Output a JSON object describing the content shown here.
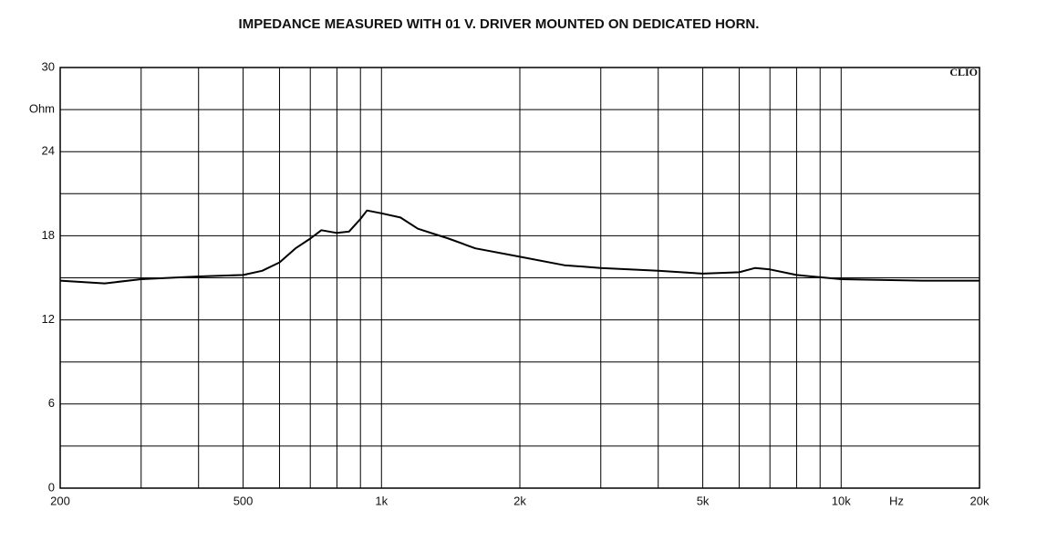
{
  "chart_data": {
    "type": "line",
    "title": "IMPEDANCE MEASURED WITH 01 V. DRIVER MOUNTED ON DEDICATED HORN.",
    "brand": "CLIO",
    "x_label": "Hz",
    "xscale": "log",
    "x": [
      200,
      250,
      300,
      400,
      500,
      550,
      600,
      650,
      700,
      740,
      800,
      850,
      900,
      930,
      1000,
      1100,
      1200,
      1400,
      1600,
      2000,
      2500,
      3000,
      4000,
      5000,
      6000,
      6500,
      7000,
      8000,
      10000,
      15000,
      20000
    ],
    "series": [
      {
        "color": "#000000",
        "values": [
          14.8,
          14.6,
          14.9,
          15.1,
          15.2,
          15.5,
          16.1,
          17.1,
          17.8,
          18.4,
          18.2,
          18.3,
          19.2,
          19.8,
          19.6,
          19.3,
          18.5,
          17.8,
          17.1,
          16.5,
          15.9,
          15.7,
          15.5,
          15.3,
          15.4,
          15.7,
          15.6,
          15.2,
          14.9,
          14.8,
          14.8
        ]
      }
    ],
    "xlim": [
      200,
      20000
    ],
    "xticks": [
      200,
      500,
      {
        "value": 1000,
        "label": "1k"
      },
      {
        "value": 2000,
        "label": "2k"
      },
      {
        "value": 5000,
        "label": "5k"
      },
      {
        "value": 10000,
        "label": "10k"
      },
      {
        "value": 20000,
        "label": "20k"
      }
    ],
    "xminor": [
      300,
      400,
      600,
      700,
      800,
      900,
      3000,
      4000,
      6000,
      7000,
      8000,
      9000
    ],
    "ylim": [
      0,
      30
    ],
    "yticks": [
      0,
      6,
      12,
      18,
      24,
      {
        "value": 27,
        "label": "Ohm"
      },
      30
    ],
    "yminor": [
      3,
      9,
      15,
      21
    ],
    "grid": true
  }
}
